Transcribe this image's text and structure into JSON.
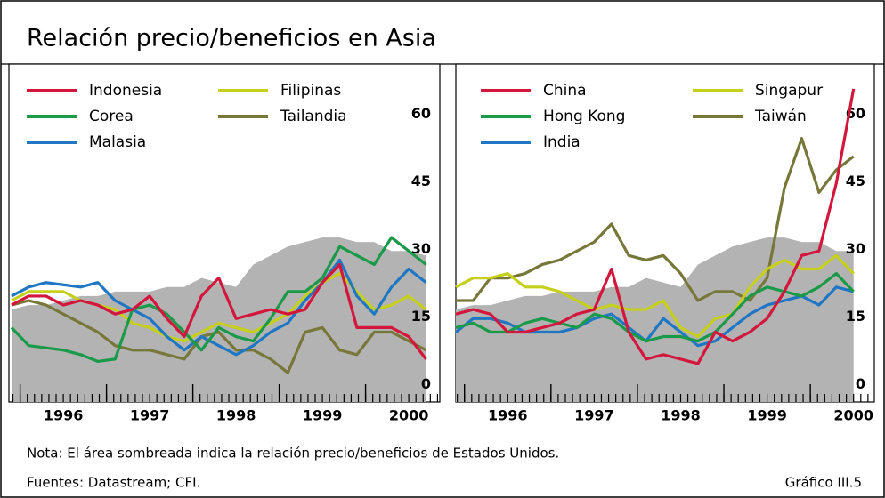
{
  "title": "Relación precio/beneficios en Asia",
  "note": "Nota: El área sombreada indica la relación precio/beneficios de Estados Unidos.",
  "sources": "Fuentes: Datastream; CFI.",
  "figure_label": "Gráfico III.5",
  "chart_data": [
    {
      "type": "line",
      "x": [
        1995.9,
        1996.1,
        1996.3,
        1996.5,
        1996.7,
        1996.9,
        1997.1,
        1997.3,
        1997.5,
        1997.7,
        1997.9,
        1998.1,
        1998.3,
        1998.5,
        1998.7,
        1998.9,
        1999.1,
        1999.3,
        1999.5,
        1999.7,
        1999.9,
        2000.1,
        2000.3,
        2000.5,
        2000.7
      ],
      "xlim": [
        1995.87,
        2000.86
      ],
      "xticks": [
        1996,
        1997,
        1998,
        1999,
        2000
      ],
      "ylim": [
        -3.5,
        71.5
      ],
      "yticks": [
        0,
        15,
        30,
        45,
        60
      ],
      "shaded_area": {
        "color": "#b3b3b3",
        "values": [
          17,
          18,
          18,
          19,
          20,
          20,
          21,
          21,
          21,
          22,
          22,
          24,
          23,
          22,
          27,
          29,
          31,
          32,
          33,
          33,
          32,
          32,
          30,
          30,
          29
        ]
      },
      "series": [
        {
          "name": "Indonesia",
          "color": "#d2163c",
          "values": [
            18,
            20,
            20,
            18,
            19,
            18,
            16,
            17,
            20,
            15,
            11,
            20,
            24,
            15,
            16,
            17,
            16,
            17,
            23,
            27,
            13,
            13,
            13,
            11,
            6
          ]
        },
        {
          "name": "Corea",
          "color": "#1a9a48",
          "values": [
            13,
            9,
            8.5,
            8,
            7,
            5.5,
            6,
            17,
            18,
            16,
            12,
            8,
            13,
            11,
            10,
            15,
            21,
            21,
            24,
            31,
            29,
            27,
            33,
            30,
            27
          ]
        },
        {
          "name": "Malasia",
          "color": "#1f77c4",
          "values": [
            20,
            22,
            23,
            22.5,
            22,
            23,
            19,
            17,
            15,
            11,
            8,
            11,
            9,
            7,
            9,
            12,
            14,
            19,
            23,
            28,
            20,
            16,
            22,
            26,
            23
          ]
        },
        {
          "name": "Filipinas",
          "color": "#c5cf1c",
          "values": [
            19,
            21,
            21,
            21,
            19,
            18,
            17,
            14,
            13,
            11,
            10,
            12,
            14,
            13,
            12,
            14,
            16,
            20,
            23,
            25,
            21,
            17,
            18,
            20,
            17
          ]
        },
        {
          "name": "Tailandia",
          "color": "#77773a",
          "values": [
            18,
            19,
            18,
            16,
            14,
            12,
            9,
            8,
            8,
            7,
            6,
            11,
            12,
            8,
            8,
            6,
            3,
            12,
            13,
            8,
            7,
            12,
            12,
            10,
            8
          ]
        }
      ]
    },
    {
      "type": "line",
      "x": [
        1995.9,
        1996.1,
        1996.3,
        1996.5,
        1996.7,
        1996.9,
        1997.1,
        1997.3,
        1997.5,
        1997.7,
        1997.9,
        1998.1,
        1998.3,
        1998.5,
        1998.7,
        1998.9,
        1999.1,
        1999.3,
        1999.5,
        1999.7,
        1999.9,
        2000.1,
        2000.3,
        2000.5
      ],
      "xlim": [
        1995.9,
        2000.74
      ],
      "xticks": [
        1996,
        1997,
        1998,
        1999,
        2000
      ],
      "ylim": [
        -3.5,
        71.5
      ],
      "yticks": [
        0,
        15,
        30,
        45,
        60
      ],
      "shaded_area": {
        "color": "#b3b3b3",
        "values": [
          17,
          18,
          18,
          19,
          20,
          20,
          21,
          21,
          21,
          22,
          22,
          24,
          23,
          22,
          27,
          29,
          31,
          32,
          33,
          33,
          32,
          32,
          30,
          30
        ]
      },
      "series": [
        {
          "name": "China",
          "color": "#d2163c",
          "values": [
            16,
            17,
            16,
            12,
            12,
            13,
            14,
            16,
            17,
            26,
            12,
            6,
            7,
            6,
            5,
            12,
            10,
            12,
            15,
            21,
            29,
            30,
            45,
            66
          ]
        },
        {
          "name": "Hong Kong",
          "color": "#1a9a48",
          "values": [
            13,
            14,
            12,
            12,
            14,
            15,
            14,
            13,
            16,
            15,
            12,
            10,
            11,
            11,
            10,
            12,
            16,
            20,
            22,
            21,
            20,
            22,
            25,
            21
          ]
        },
        {
          "name": "India",
          "color": "#1f77c4",
          "values": [
            12,
            15,
            15,
            14,
            12,
            12,
            12,
            13,
            15,
            16,
            13,
            10,
            15,
            12,
            9,
            10,
            13,
            16,
            18,
            19,
            20,
            18,
            22,
            21
          ]
        },
        {
          "name": "Singapur",
          "color": "#c5cf1c",
          "values": [
            22,
            24,
            24,
            25,
            22,
            22,
            21,
            19,
            17,
            18,
            17,
            17,
            19,
            13,
            11,
            15,
            16,
            22,
            26,
            28,
            26,
            26,
            29,
            25
          ]
        },
        {
          "name": "Taiwán",
          "color": "#77773a",
          "values": [
            19,
            19,
            24,
            24,
            25,
            27,
            28,
            30,
            32,
            36,
            29,
            28,
            29,
            25,
            19,
            21,
            21,
            19,
            24,
            44,
            55,
            43,
            48,
            51
          ]
        }
      ]
    }
  ]
}
